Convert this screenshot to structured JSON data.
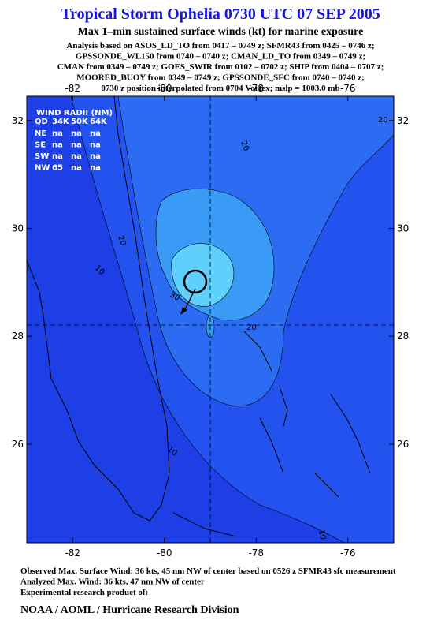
{
  "header": {
    "title": "Tropical Storm Ophelia 0730 UTC 07 SEP 2005",
    "subtitle": "Max 1–min sustained surface winds (kt) for marine exposure",
    "analysis_lines": [
      "Analysis based on  ASOS_LD_TO from 0417 – 0749 z;  SFMR43 from 0425 – 0746 z;",
      "GPSSONDE_WL150 from 0740 – 0740 z;  CMAN_LD_TO from 0349 – 0749 z;",
      "CMAN from 0349 – 0749 z;  GOES_SWIR from 0102 – 0702 z;  SHIP from 0404 – 0707 z;",
      "MOORED_BUOY from 0349 – 0749 z;  GPSSONDE_SFC from 0740 – 0740 z;",
      "0730 z position interpolated from 0704 Vortex; mslp = 1003.0 mb"
    ]
  },
  "map": {
    "xlim": [
      -83,
      -75
    ],
    "ylim": [
      24.17,
      32.45
    ],
    "xticks": [
      -82,
      -80,
      -78,
      -76
    ],
    "yticks": [
      32,
      30,
      28,
      26
    ],
    "wind_radii": {
      "title": "WIND RADII (NM)",
      "header": [
        "QD",
        "34K",
        "50K",
        "64K"
      ],
      "rows": [
        [
          "NE",
          "na",
          "na",
          "na"
        ],
        [
          "SE",
          "na",
          "na",
          "na"
        ],
        [
          "SW",
          "na",
          "na",
          "na"
        ],
        [
          "NW",
          "65",
          "na",
          "na"
        ]
      ]
    },
    "contour_labels": [
      "20",
      "20",
      "20",
      "10",
      "30",
      "20",
      "10",
      "10"
    ]
  },
  "footer": {
    "lines": [
      "Observed Max. Surface Wind: 36 kts, 45 nm NW of center based on 0526 z SFMR43 sfc measurement",
      "Analyzed Max. Wind: 36 kts, 47 nm NW of center",
      "Experimental research product of:"
    ],
    "organization": "NOAA / AOML / Hurricane Research Division"
  }
}
